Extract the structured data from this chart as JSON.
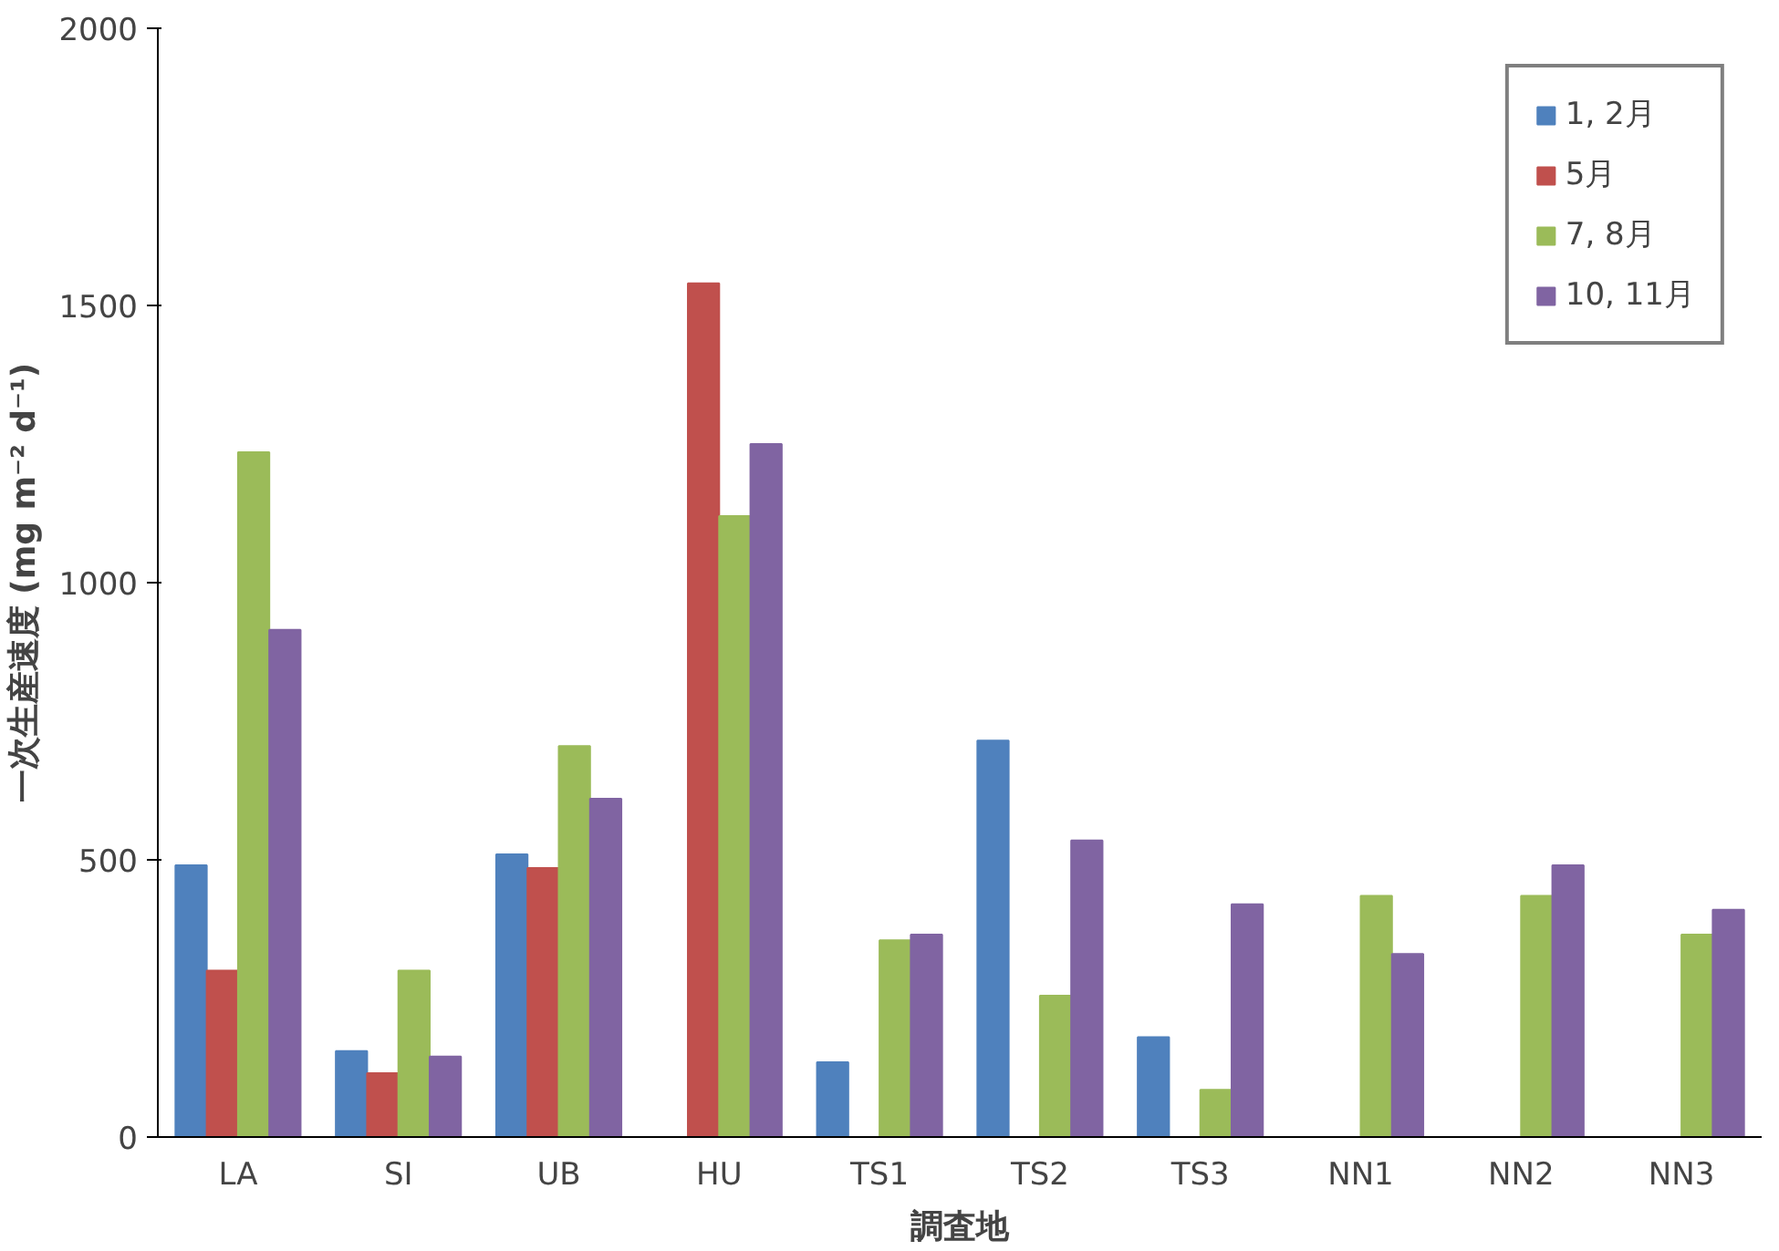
{
  "chart_data": {
    "type": "bar",
    "xlabel": "調査地",
    "ylabel": "一次生産速度 (mg m⁻² d⁻¹)",
    "categories": [
      "LA",
      "SI",
      "UB",
      "HU",
      "TS1",
      "TS2",
      "TS3",
      "NN1",
      "NN2",
      "NN3"
    ],
    "series": [
      {
        "name": "1, 2月",
        "color": "#4f81bd",
        "values": [
          490,
          155,
          510,
          null,
          135,
          715,
          180,
          null,
          null,
          null
        ]
      },
      {
        "name": "5月",
        "color": "#c0504d",
        "values": [
          300,
          115,
          485,
          1540,
          null,
          null,
          null,
          null,
          null,
          null
        ]
      },
      {
        "name": "7, 8月",
        "color": "#9bbb59",
        "values": [
          1235,
          300,
          705,
          1120,
          355,
          255,
          85,
          435,
          435,
          365
        ]
      },
      {
        "name": "10, 11月",
        "color": "#8064a2",
        "values": [
          915,
          145,
          610,
          1250,
          365,
          535,
          420,
          330,
          490,
          410
        ]
      }
    ],
    "ylim": [
      0,
      2000
    ],
    "yticks": [
      0,
      500,
      1000,
      1500,
      2000
    ],
    "grid": false,
    "legend": "top right"
  }
}
